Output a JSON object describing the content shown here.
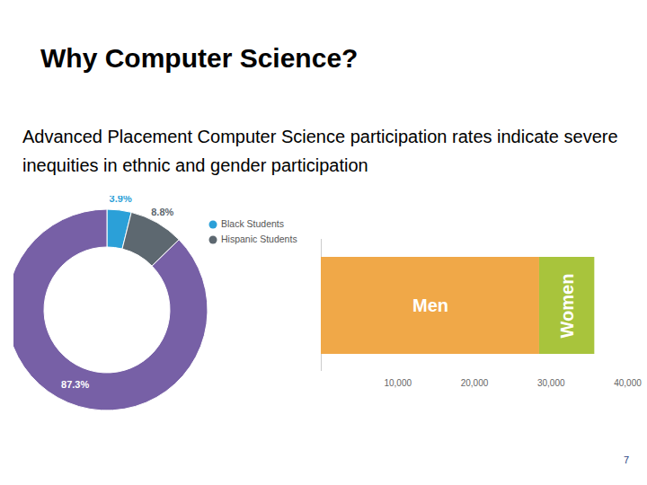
{
  "title": "Why Computer Science?",
  "text": "Advanced Placement Computer Science participation rates indicate severe inequities in ethnic and gender participation",
  "page_number": 7,
  "chart_data": [
    {
      "type": "pie",
      "categories": [
        "Black Students",
        "Hispanic Students",
        null
      ],
      "values": [
        3.9,
        8.8,
        87.3
      ],
      "value_labels": [
        "3.9%",
        "8.8%",
        "87.3%"
      ],
      "colors": [
        "#2ba0d8",
        "#5d6870",
        "#7760a6"
      ],
      "data_labels": true,
      "legend": "top-right"
    },
    {
      "type": "bar",
      "orientation": "horizontal",
      "stacked": true,
      "categories": [
        null
      ],
      "series": [
        {
          "name": "Men",
          "color": "#f0a848",
          "values": [
            28500
          ]
        },
        {
          "name": "Women",
          "color": "#a8c43c",
          "values": [
            7200
          ]
        }
      ],
      "xlim": [
        0,
        40000
      ],
      "xticks": [
        {
          "value": 10000,
          "label": "10,000"
        },
        {
          "value": 20000,
          "label": "20,000"
        },
        {
          "value": 30000,
          "label": "30,000"
        },
        {
          "value": 40000,
          "label": "40,000"
        }
      ],
      "tick_labels": "x",
      "grid": false
    }
  ]
}
